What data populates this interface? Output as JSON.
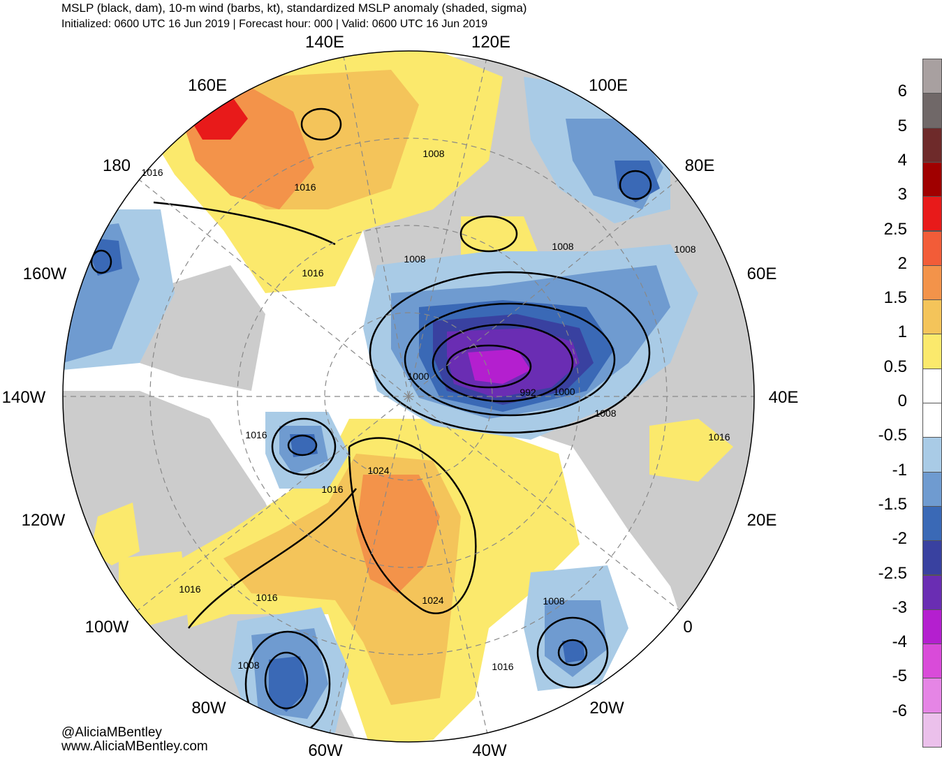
{
  "header": {
    "title": "MSLP (black, dam), 10-m wind (barbs, kt), standardized MSLP anomaly (shaded, sigma)",
    "subtitle": "Initialized: 0600 UTC 16 Jun 2019 | Forecast hour: 000 | Valid: 0600 UTC 16 Jun 2019"
  },
  "credits": {
    "line1": "@AliciaMBentley",
    "line2": "www.AliciaMBentley.com"
  },
  "longitudes": [
    {
      "label": "140E"
    },
    {
      "label": "120E"
    },
    {
      "label": "100E"
    },
    {
      "label": "80E"
    },
    {
      "label": "60E"
    },
    {
      "label": "40E"
    },
    {
      "label": "20E"
    },
    {
      "label": "0"
    },
    {
      "label": "20W"
    },
    {
      "label": "40W"
    },
    {
      "label": "60W"
    },
    {
      "label": "80W"
    },
    {
      "label": "100W"
    },
    {
      "label": "120W"
    },
    {
      "label": "140W"
    },
    {
      "label": "160W"
    },
    {
      "label": "180"
    },
    {
      "label": "160E"
    }
  ],
  "isobar_labels": [
    "1016",
    "1016",
    "1008",
    "1016",
    "1008",
    "1008",
    "1008",
    "1000",
    "992",
    "1000",
    "1008",
    "1016",
    "1016",
    "1024",
    "1016",
    "1016",
    "1016",
    "1024",
    "1008",
    "1008",
    "1016"
  ],
  "colorbar": {
    "labels": [
      "6",
      "5",
      "4",
      "3",
      "2.5",
      "2",
      "1.5",
      "1",
      "0.5",
      "0",
      "-0.5",
      "-1",
      "-1.5",
      "-2",
      "-2.5",
      "-3",
      "-4",
      "-5",
      "-6"
    ],
    "colors": [
      "#a8a0a0",
      "#706868",
      "#6e2a2a",
      "#a00000",
      "#e81a1a",
      "#f25c38",
      "#f3934a",
      "#f4c45a",
      "#fbe96c",
      "#ffffff",
      "#ffffff",
      "#a9cbe6",
      "#6f9bd0",
      "#3a69b6",
      "#3941a0",
      "#6a2db3",
      "#b41fcf",
      "#d94bd9",
      "#e585e5",
      "#ebc0eb"
    ]
  },
  "palette": {
    "land": "#cccccc",
    "ocean": "#ffffff"
  }
}
